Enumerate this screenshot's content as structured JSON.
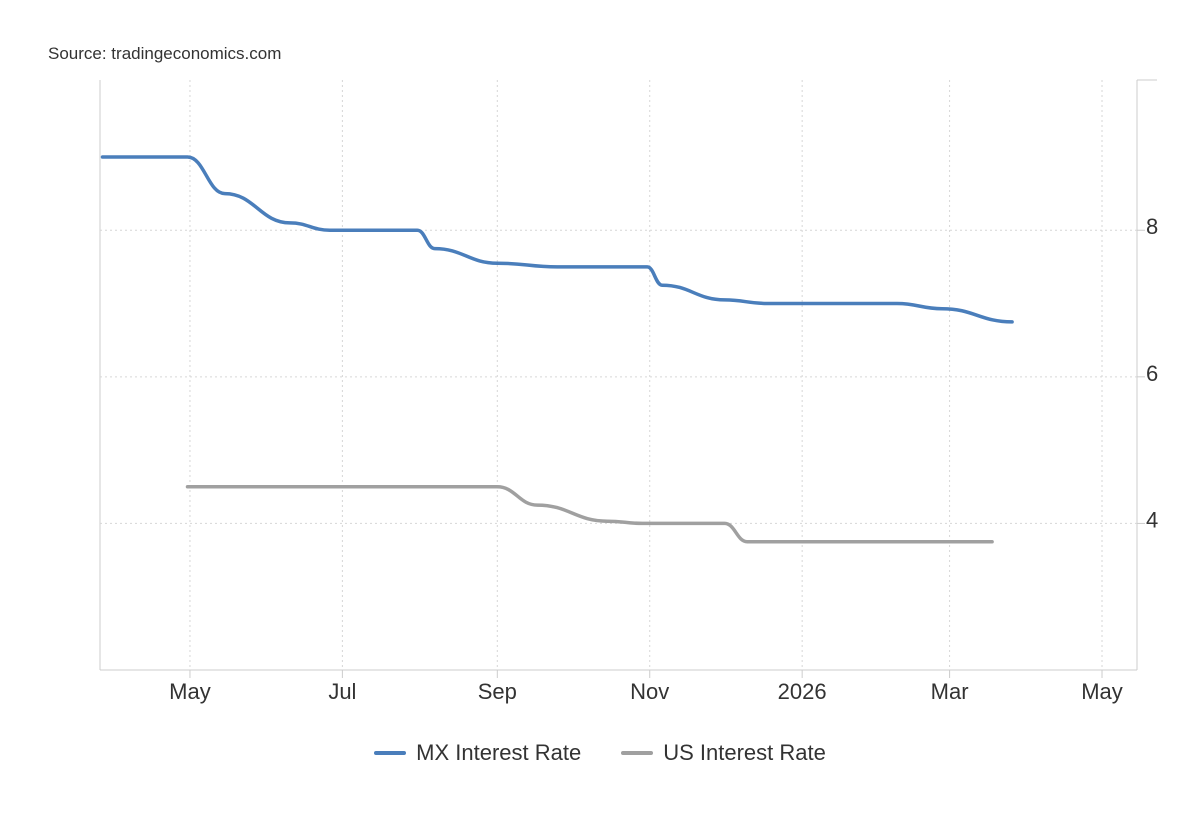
{
  "source": "Source: tradingeconomics.com",
  "colors": {
    "mx": "#4a7ebb",
    "us": "#a0a0a0",
    "grid": "#d6d6d6",
    "axis": "#cccccc"
  },
  "chart_data": {
    "type": "line",
    "xlabel": "",
    "ylabel": "",
    "x_ticks": [
      {
        "label": "May",
        "date": "2025-05-01"
      },
      {
        "label": "Jul",
        "date": "2025-07-01"
      },
      {
        "label": "Sep",
        "date": "2025-09-01"
      },
      {
        "label": "Nov",
        "date": "2025-11-01"
      },
      {
        "label": "2026",
        "date": "2026-01-01"
      },
      {
        "label": "Mar",
        "date": "2026-03-01"
      },
      {
        "label": "May",
        "date": "2026-05-01"
      }
    ],
    "y_ticks": [
      4,
      6,
      8
    ],
    "xlim": [
      "2025-03-26",
      "2026-05-15"
    ],
    "ylim": [
      2,
      10.05
    ],
    "grid": true,
    "y_axis_side": "right",
    "legend_position": "bottom",
    "series": [
      {
        "name": "MX Interest Rate",
        "color_key": "mx",
        "points": [
          {
            "x": "2025-03-27",
            "y": 9.0
          },
          {
            "x": "2025-04-30",
            "y": 9.0
          },
          {
            "x": "2025-05-15",
            "y": 8.5
          },
          {
            "x": "2025-06-10",
            "y": 8.1
          },
          {
            "x": "2025-06-26",
            "y": 8.0
          },
          {
            "x": "2025-07-31",
            "y": 8.0
          },
          {
            "x": "2025-08-07",
            "y": 7.75
          },
          {
            "x": "2025-09-01",
            "y": 7.55
          },
          {
            "x": "2025-09-25",
            "y": 7.5
          },
          {
            "x": "2025-10-31",
            "y": 7.5
          },
          {
            "x": "2025-11-06",
            "y": 7.25
          },
          {
            "x": "2025-12-01",
            "y": 7.05
          },
          {
            "x": "2025-12-18",
            "y": 7.0
          },
          {
            "x": "2026-02-08",
            "y": 7.0
          },
          {
            "x": "2026-02-26",
            "y": 6.93
          },
          {
            "x": "2026-03-26",
            "y": 6.75
          }
        ]
      },
      {
        "name": "US Interest Rate",
        "color_key": "us",
        "points": [
          {
            "x": "2025-04-30",
            "y": 4.5
          },
          {
            "x": "2025-09-01",
            "y": 4.5
          },
          {
            "x": "2025-09-17",
            "y": 4.25
          },
          {
            "x": "2025-10-15",
            "y": 4.03
          },
          {
            "x": "2025-10-29",
            "y": 4.0
          },
          {
            "x": "2025-12-01",
            "y": 4.0
          },
          {
            "x": "2025-12-10",
            "y": 3.75
          },
          {
            "x": "2026-03-18",
            "y": 3.75
          }
        ]
      }
    ]
  }
}
